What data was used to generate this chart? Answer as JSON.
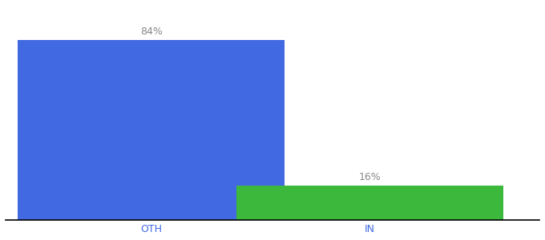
{
  "categories": [
    "OTH",
    "IN"
  ],
  "values": [
    84,
    16
  ],
  "bar_colors": [
    "#4169E1",
    "#3CB83C"
  ],
  "labels": [
    "84%",
    "16%"
  ],
  "background_color": "#ffffff",
  "ylim": [
    0,
    100
  ],
  "bar_width": 0.55,
  "label_fontsize": 9,
  "tick_fontsize": 9,
  "label_color": "#888888",
  "tick_color": "#4169E1",
  "x_positions": [
    0.3,
    0.75
  ],
  "xlim": [
    0,
    1.1
  ]
}
